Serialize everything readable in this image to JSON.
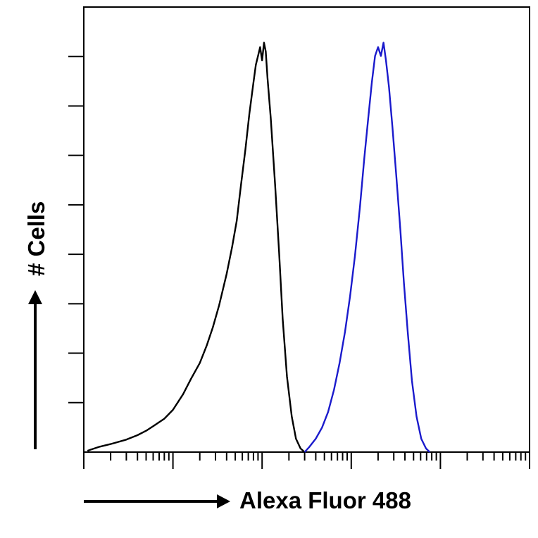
{
  "chart_data": {
    "type": "line",
    "title": "",
    "xlabel": "Alexa Fluor 488",
    "ylabel": "# Cells",
    "x_scale": "log",
    "xlim": [
      1,
      100000
    ],
    "ylim": [
      0,
      100
    ],
    "grid": false,
    "legend": "none",
    "series": [
      {
        "color": "#000000",
        "points": [
          [
            1.1,
            0.3
          ],
          [
            1.5,
            1.2
          ],
          [
            2.0,
            1.8
          ],
          [
            3.0,
            2.8
          ],
          [
            4.0,
            3.8
          ],
          [
            5.0,
            4.8
          ],
          [
            6.0,
            5.8
          ],
          [
            8.0,
            7.5
          ],
          [
            10,
            9.5
          ],
          [
            13,
            13
          ],
          [
            16,
            16.5
          ],
          [
            20,
            20
          ],
          [
            24,
            24
          ],
          [
            28,
            28
          ],
          [
            33,
            33
          ],
          [
            40,
            40
          ],
          [
            46,
            46
          ],
          [
            52,
            52
          ],
          [
            58,
            60
          ],
          [
            65,
            68
          ],
          [
            72,
            76
          ],
          [
            80,
            83
          ],
          [
            85,
            87
          ],
          [
            90,
            89
          ],
          [
            95,
            91
          ],
          [
            100,
            88
          ],
          [
            105,
            92
          ],
          [
            110,
            90
          ],
          [
            115,
            84
          ],
          [
            125,
            75
          ],
          [
            140,
            60
          ],
          [
            155,
            45
          ],
          [
            170,
            30
          ],
          [
            190,
            17
          ],
          [
            215,
            8
          ],
          [
            240,
            3
          ],
          [
            270,
            0.8
          ],
          [
            300,
            0
          ]
        ]
      },
      {
        "color": "#1a1acc",
        "points": [
          [
            300,
            0
          ],
          [
            340,
            1.2
          ],
          [
            400,
            3
          ],
          [
            470,
            5.5
          ],
          [
            550,
            9
          ],
          [
            640,
            14
          ],
          [
            740,
            20
          ],
          [
            850,
            27
          ],
          [
            970,
            35
          ],
          [
            1100,
            44
          ],
          [
            1250,
            55
          ],
          [
            1400,
            66
          ],
          [
            1550,
            75
          ],
          [
            1700,
            83
          ],
          [
            1850,
            89
          ],
          [
            2000,
            91
          ],
          [
            2150,
            89
          ],
          [
            2300,
            92
          ],
          [
            2450,
            88
          ],
          [
            2650,
            82
          ],
          [
            2900,
            73
          ],
          [
            3200,
            62
          ],
          [
            3550,
            50
          ],
          [
            3900,
            38
          ],
          [
            4300,
            27
          ],
          [
            4800,
            16
          ],
          [
            5400,
            8
          ],
          [
            6100,
            3
          ],
          [
            6900,
            0.8
          ],
          [
            7600,
            0
          ]
        ]
      }
    ]
  }
}
